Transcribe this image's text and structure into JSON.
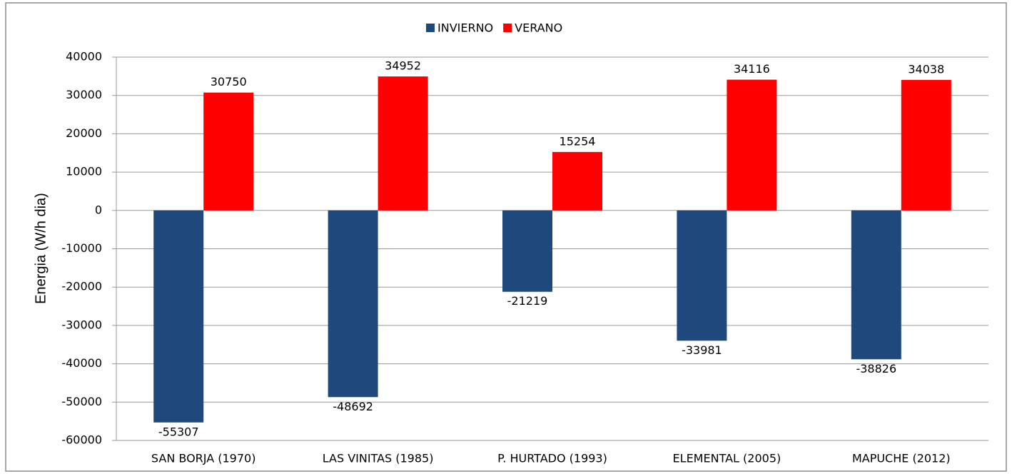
{
  "chart_data": {
    "type": "bar",
    "categories": [
      "SAN BORJA (1970)",
      "LAS VINITAS (1985)",
      "P. HURTADO (1993)",
      "ELEMENTAL (2005)",
      "MAPUCHE (2012)"
    ],
    "series": [
      {
        "name": "INVIERNO",
        "color": "#1f497d",
        "values": [
          -55307,
          -48692,
          -21219,
          -33981,
          -38826
        ]
      },
      {
        "name": "VERANO",
        "color": "#ff0000",
        "values": [
          30750,
          34952,
          15254,
          34116,
          34038
        ]
      }
    ],
    "y_label": "Energia (W/h dia)",
    "ylim": [
      -60000,
      40000
    ],
    "yticks": [
      -60000,
      -50000,
      -40000,
      -30000,
      -20000,
      -10000,
      0,
      10000,
      20000,
      30000,
      40000
    ],
    "grid": true,
    "legend": "top"
  }
}
